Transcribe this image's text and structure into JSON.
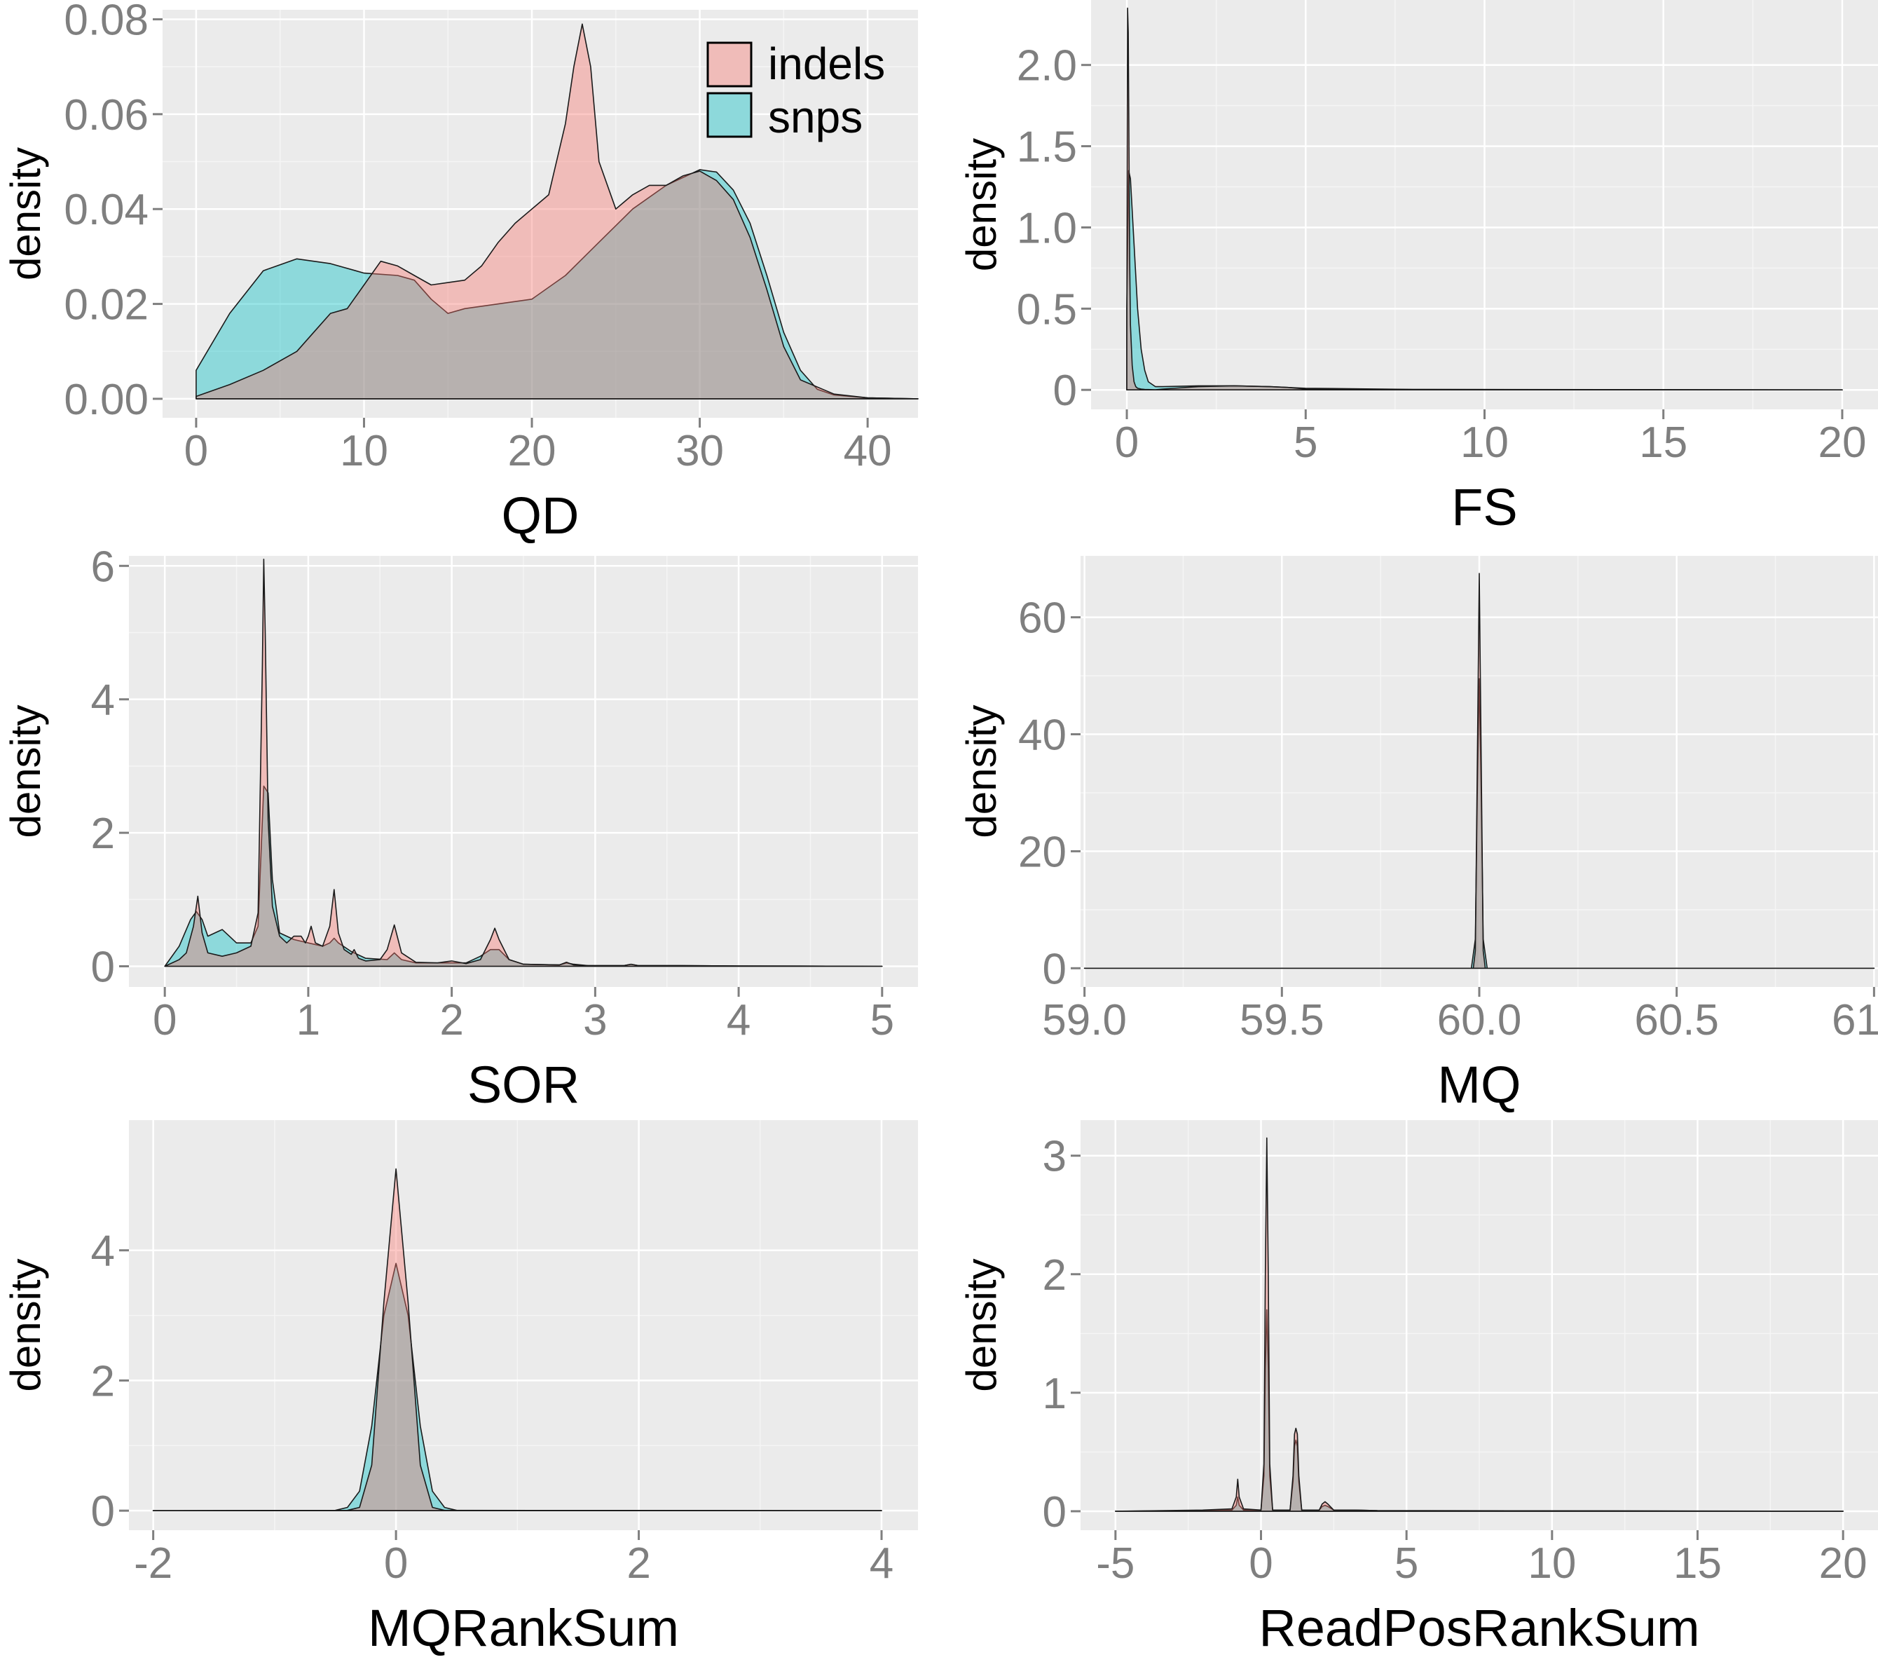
{
  "chart_data": [
    {
      "type": "area",
      "xlabel": "QD",
      "ylabel": "density",
      "xlim": [
        -2,
        43
      ],
      "ylim": [
        -0.004,
        0.082
      ],
      "xticks": [
        0,
        10,
        20,
        30,
        40
      ],
      "xtick_labels": [
        "0",
        "10",
        "20",
        "30",
        "40"
      ],
      "yticks": [
        0,
        0.02,
        0.04,
        0.06,
        0.08
      ],
      "ytick_labels": [
        "0.00",
        "0.02",
        "0.04",
        "0.06",
        "0.08"
      ],
      "grid": true,
      "legend": {
        "position": "top-right",
        "entries": [
          "indels",
          "snps"
        ]
      },
      "series": [
        {
          "name": "snps",
          "color": "#00BFC4",
          "x": [
            0,
            2,
            4,
            6,
            8,
            10,
            12,
            13,
            14,
            15,
            16,
            18,
            20,
            22,
            24,
            26,
            28,
            30,
            31,
            32,
            33,
            34,
            35,
            36,
            37,
            38,
            40,
            43
          ],
          "y": [
            0.006,
            0.018,
            0.027,
            0.0295,
            0.0285,
            0.0265,
            0.026,
            0.025,
            0.021,
            0.018,
            0.019,
            0.02,
            0.021,
            0.026,
            0.033,
            0.04,
            0.045,
            0.0483,
            0.0478,
            0.044,
            0.037,
            0.026,
            0.014,
            0.006,
            0.002,
            0.0008,
            0.0002,
            0
          ]
        },
        {
          "name": "indels",
          "color": "#F8766D",
          "x": [
            0,
            2,
            4,
            6,
            7,
            8,
            9,
            10,
            11,
            12,
            13,
            14,
            16,
            17,
            18,
            19,
            20,
            21,
            22,
            22.5,
            23,
            23.5,
            24,
            25,
            26,
            27,
            28,
            29,
            30,
            31,
            32,
            33,
            34,
            35,
            36,
            38,
            40,
            43
          ],
          "y": [
            0.0005,
            0.003,
            0.006,
            0.01,
            0.014,
            0.018,
            0.019,
            0.024,
            0.029,
            0.028,
            0.026,
            0.024,
            0.025,
            0.028,
            0.033,
            0.037,
            0.04,
            0.043,
            0.058,
            0.07,
            0.079,
            0.07,
            0.05,
            0.04,
            0.043,
            0.045,
            0.045,
            0.047,
            0.048,
            0.046,
            0.042,
            0.034,
            0.023,
            0.011,
            0.004,
            0.001,
            0.0002,
            0
          ]
        }
      ]
    },
    {
      "type": "area",
      "xlabel": "FS",
      "ylabel": "density",
      "xlim": [
        -1,
        21
      ],
      "ylim": [
        -0.12,
        2.4
      ],
      "xticks": [
        0,
        5,
        10,
        15,
        20
      ],
      "xtick_labels": [
        "0",
        "5",
        "10",
        "15",
        "20"
      ],
      "yticks": [
        0,
        0.5,
        1.0,
        1.5,
        2.0
      ],
      "ytick_labels": [
        "0",
        "0.5",
        "1.0",
        "1.5",
        "2.0"
      ],
      "grid": true,
      "series": [
        {
          "name": "snps",
          "color": "#00BFC4",
          "x": [
            0,
            0.05,
            0.1,
            0.2,
            0.3,
            0.4,
            0.5,
            0.6,
            0.8,
            1,
            2,
            3,
            4,
            5,
            8,
            20
          ],
          "y": [
            0.5,
            1.35,
            1.3,
            0.9,
            0.5,
            0.25,
            0.12,
            0.05,
            0.02,
            0.02,
            0.025,
            0.025,
            0.02,
            0.01,
            0.003,
            0
          ]
        },
        {
          "name": "indels",
          "color": "#F8766D",
          "x": [
            0,
            0.02,
            0.04,
            0.06,
            0.08,
            0.1,
            0.15,
            0.2,
            0.25,
            0.3,
            0.4,
            0.5,
            0.6,
            0.8,
            1,
            2,
            3,
            4,
            4.5,
            5,
            8,
            20
          ],
          "y": [
            0.3,
            2.35,
            2.2,
            1.5,
            0.8,
            0.4,
            0.15,
            0.05,
            0.02,
            0.01,
            0.005,
            0.003,
            0.002,
            0.001,
            0.005,
            0.02,
            0.025,
            0.02,
            0.015,
            0.005,
            0.002,
            0
          ]
        }
      ]
    },
    {
      "type": "area",
      "xlabel": "SOR",
      "ylabel": "density",
      "xlim": [
        -0.25,
        5.25
      ],
      "ylim": [
        -0.31,
        6.15
      ],
      "xticks": [
        0,
        1,
        2,
        3,
        4,
        5
      ],
      "xtick_labels": [
        "0",
        "1",
        "2",
        "3",
        "4",
        "5"
      ],
      "yticks": [
        0,
        2,
        4,
        6
      ],
      "ytick_labels": [
        "0",
        "2",
        "4",
        "6"
      ],
      "grid": true,
      "series": [
        {
          "name": "snps",
          "color": "#00BFC4",
          "x": [
            0,
            0.1,
            0.18,
            0.22,
            0.26,
            0.3,
            0.35,
            0.4,
            0.45,
            0.5,
            0.55,
            0.6,
            0.65,
            0.69,
            0.72,
            0.75,
            0.8,
            0.9,
            1,
            1.1,
            1.15,
            1.18,
            1.21,
            1.3,
            1.4,
            1.55,
            1.6,
            1.65,
            1.75,
            1.9,
            2.0,
            2.1,
            2.2,
            2.27,
            2.33,
            2.4,
            2.5,
            2.75,
            2.8,
            2.85,
            2.95,
            3.2,
            3.25,
            3.3,
            3.6,
            4,
            5
          ],
          "y": [
            0,
            0.3,
            0.7,
            0.82,
            0.7,
            0.45,
            0.5,
            0.55,
            0.45,
            0.35,
            0.35,
            0.35,
            0.6,
            2.7,
            2.6,
            1.3,
            0.5,
            0.4,
            0.35,
            0.3,
            0.35,
            0.42,
            0.35,
            0.22,
            0.12,
            0.1,
            0.2,
            0.1,
            0.05,
            0.05,
            0.05,
            0.05,
            0.15,
            0.25,
            0.25,
            0.1,
            0.03,
            0.02,
            0.05,
            0.03,
            0.01,
            0.01,
            0.03,
            0.01,
            0.01,
            0.005,
            0
          ]
        },
        {
          "name": "indels",
          "color": "#F8766D",
          "x": [
            0,
            0.1,
            0.15,
            0.2,
            0.23,
            0.26,
            0.3,
            0.4,
            0.5,
            0.6,
            0.65,
            0.68,
            0.69,
            0.7,
            0.72,
            0.75,
            0.8,
            0.85,
            0.9,
            0.95,
            0.98,
            1.0,
            1.02,
            1.05,
            1.1,
            1.15,
            1.18,
            1.21,
            1.25,
            1.3,
            1.32,
            1.35,
            1.4,
            1.5,
            1.55,
            1.6,
            1.65,
            1.75,
            1.9,
            2.0,
            2.1,
            2.2,
            2.27,
            2.3,
            2.33,
            2.4,
            2.5,
            2.75,
            2.8,
            2.85,
            2.95,
            3.2,
            3.25,
            3.3,
            3.6,
            4,
            5
          ],
          "y": [
            0,
            0.1,
            0.2,
            0.6,
            1.05,
            0.5,
            0.2,
            0.15,
            0.2,
            0.3,
            0.8,
            4.5,
            6.1,
            5.0,
            2.2,
            0.9,
            0.45,
            0.35,
            0.45,
            0.45,
            0.35,
            0.45,
            0.6,
            0.35,
            0.3,
            0.6,
            1.15,
            0.5,
            0.25,
            0.18,
            0.25,
            0.12,
            0.08,
            0.1,
            0.25,
            0.62,
            0.2,
            0.06,
            0.05,
            0.08,
            0.04,
            0.1,
            0.4,
            0.57,
            0.4,
            0.1,
            0.03,
            0.02,
            0.06,
            0.02,
            0.01,
            0.01,
            0.03,
            0.01,
            0.01,
            0.005,
            0
          ]
        }
      ]
    },
    {
      "type": "area",
      "xlabel": "MQ",
      "ylabel": "density",
      "xlim": [
        58.99,
        61.01
      ],
      "ylim": [
        -3.2,
        70.5
      ],
      "xticks": [
        59.0,
        59.5,
        60.0,
        60.5,
        61.0
      ],
      "xtick_labels": [
        "59.0",
        "59.5",
        "60.0",
        "60.5",
        "61.0"
      ],
      "yticks": [
        0,
        20,
        40,
        60
      ],
      "ytick_labels": [
        "0",
        "20",
        "40",
        "60"
      ],
      "grid": true,
      "series": [
        {
          "name": "snps",
          "color": "#00BFC4",
          "x": [
            59,
            59.98,
            59.99,
            59.995,
            60,
            60.005,
            60.01,
            60.02,
            61
          ],
          "y": [
            0,
            0,
            5,
            30,
            49.5,
            30,
            5,
            0,
            0
          ]
        },
        {
          "name": "indels",
          "color": "#F8766D",
          "x": [
            59,
            59.985,
            59.99,
            59.995,
            60,
            60.005,
            60.01,
            60.015,
            61
          ],
          "y": [
            0,
            0,
            3,
            35,
            67.5,
            35,
            3,
            0,
            0
          ]
        }
      ]
    },
    {
      "type": "area",
      "xlabel": "MQRankSum",
      "ylabel": "density",
      "xlim": [
        -2.2,
        4.3
      ],
      "ylim": [
        -0.3,
        6.0
      ],
      "xticks": [
        -2,
        0,
        2,
        4
      ],
      "xtick_labels": [
        "-2",
        "0",
        "2",
        "4"
      ],
      "yticks": [
        0,
        2,
        4
      ],
      "ytick_labels": [
        "0",
        "2",
        "4"
      ],
      "grid": true,
      "series": [
        {
          "name": "snps",
          "color": "#00BFC4",
          "x": [
            -2,
            -0.5,
            -0.4,
            -0.3,
            -0.2,
            -0.1,
            0,
            0.1,
            0.2,
            0.3,
            0.4,
            0.5,
            4
          ],
          "y": [
            0,
            0.005,
            0.05,
            0.3,
            1.3,
            3.0,
            3.8,
            3.0,
            1.3,
            0.3,
            0.05,
            0.005,
            0
          ]
        },
        {
          "name": "indels",
          "color": "#F8766D",
          "x": [
            -2,
            -0.4,
            -0.3,
            -0.2,
            -0.1,
            0,
            0.1,
            0.2,
            0.3,
            0.4,
            4
          ],
          "y": [
            0,
            0.005,
            0.05,
            0.7,
            3.2,
            5.25,
            3.2,
            0.7,
            0.05,
            0.005,
            0
          ]
        }
      ]
    },
    {
      "type": "area",
      "xlabel": "ReadPosRankSum",
      "ylabel": "density",
      "xlim": [
        -6.2,
        21.2
      ],
      "ylim": [
        -0.16,
        3.3
      ],
      "xticks": [
        -5,
        0,
        5,
        10,
        15,
        20
      ],
      "xtick_labels": [
        "-5",
        "0",
        "5",
        "10",
        "15",
        "20"
      ],
      "yticks": [
        0,
        1,
        2,
        3
      ],
      "ytick_labels": [
        "0",
        "1",
        "2",
        "3"
      ],
      "grid": true,
      "series": [
        {
          "name": "snps",
          "color": "#00BFC4",
          "x": [
            -5,
            -2,
            -1,
            -0.85,
            -0.8,
            -0.75,
            -0.6,
            0,
            0.1,
            0.15,
            0.2,
            0.25,
            0.3,
            0.4,
            1.0,
            1.1,
            1.15,
            1.2,
            1.25,
            1.3,
            1.4,
            2.0,
            2.1,
            2.2,
            2.3,
            2.5,
            3.2,
            4.0,
            20
          ],
          "y": [
            0,
            0.005,
            0.01,
            0.05,
            0.12,
            0.05,
            0.01,
            0.01,
            0.3,
            1.2,
            1.7,
            1.2,
            0.3,
            0.01,
            0.01,
            0.25,
            0.55,
            0.6,
            0.55,
            0.25,
            0.01,
            0.01,
            0.04,
            0.05,
            0.04,
            0.01,
            0.01,
            0.005,
            0
          ]
        },
        {
          "name": "indels",
          "color": "#F8766D",
          "x": [
            -5,
            -2,
            -1,
            -0.85,
            -0.8,
            -0.75,
            -0.6,
            0,
            0.1,
            0.15,
            0.2,
            0.25,
            0.3,
            0.4,
            1.0,
            1.1,
            1.15,
            1.2,
            1.25,
            1.3,
            1.4,
            2.0,
            2.1,
            2.2,
            2.3,
            2.5,
            3.2,
            4.0,
            20
          ],
          "y": [
            0,
            0.01,
            0.02,
            0.12,
            0.27,
            0.12,
            0.02,
            0.01,
            0.4,
            2.0,
            3.15,
            2.0,
            0.4,
            0.01,
            0.01,
            0.3,
            0.65,
            0.7,
            0.65,
            0.3,
            0.01,
            0.01,
            0.06,
            0.08,
            0.06,
            0.01,
            0.01,
            0.005,
            0
          ]
        }
      ]
    }
  ]
}
